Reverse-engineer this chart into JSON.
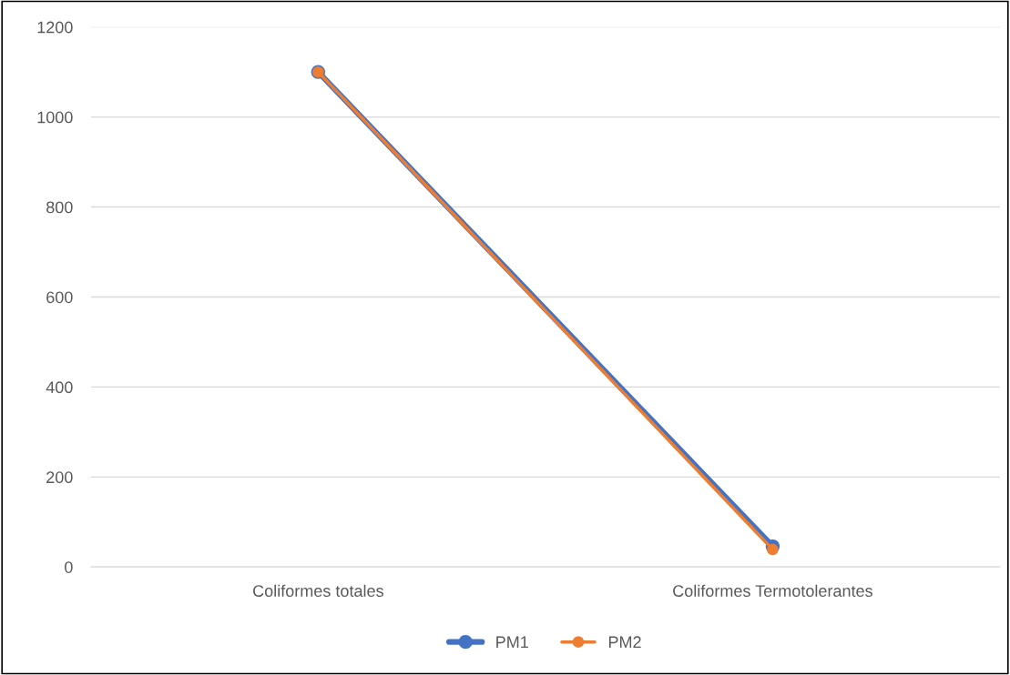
{
  "chart_data": {
    "type": "line",
    "categories": [
      "Coliformes totales",
      "Coliformes Termotolerantes"
    ],
    "series": [
      {
        "name": "PM1",
        "color": "#4472c4",
        "values": [
          1100,
          46
        ]
      },
      {
        "name": "PM2",
        "color": "#ed7d31",
        "values": [
          1100,
          39
        ]
      }
    ],
    "ylim": [
      0,
      1200
    ],
    "yticks": [
      0,
      200,
      400,
      600,
      800,
      1000,
      1200
    ],
    "grid": "y",
    "legend": "bottom",
    "marker": "circle",
    "line_style": "solid"
  }
}
